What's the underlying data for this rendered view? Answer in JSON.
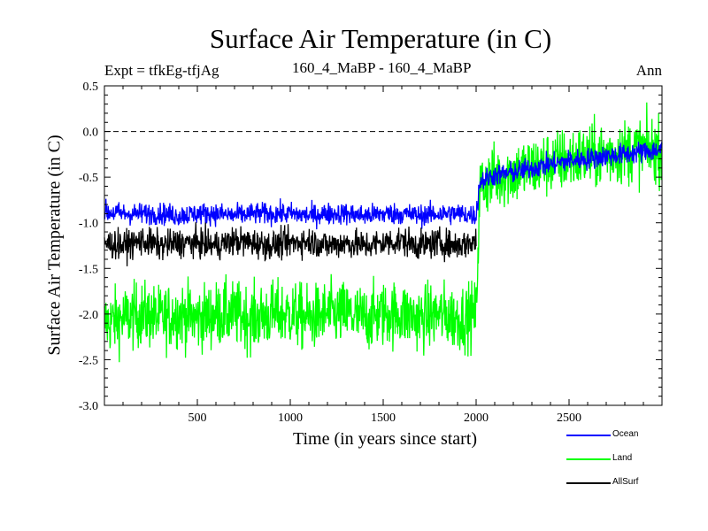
{
  "chart_data": {
    "type": "line",
    "title": "Surface Air Temperature (in C)",
    "subtitle_left": "Expt = tfkEg-tfjAg",
    "subtitle_center": "160_4_MaBP - 160_4_MaBP",
    "subtitle_right": "Ann",
    "xlabel": "Time (in years since start)",
    "ylabel": "Surface Air Temperature (in C)",
    "xlim": [
      0,
      3000
    ],
    "ylim": [
      -3.0,
      0.5
    ],
    "xticks": [
      500,
      1000,
      1500,
      2000,
      2500
    ],
    "yticks": [
      -3.0,
      -2.5,
      -2.0,
      -1.5,
      -1.0,
      -0.5,
      0.0,
      0.5
    ],
    "ytick_labels": [
      "-3.0",
      "-2.5",
      "-2.0",
      "-1.5",
      "-1.0",
      "-0.5",
      "0.0",
      "0.5"
    ],
    "reference_line": {
      "y": 0.0,
      "style": "dashed"
    },
    "grid": false,
    "legend_position": "below-right",
    "series": [
      {
        "name": "Land",
        "color": "#00ff00",
        "x": [
          0,
          100,
          200,
          300,
          400,
          500,
          600,
          700,
          800,
          900,
          1000,
          1100,
          1200,
          1300,
          1400,
          1500,
          1600,
          1700,
          1800,
          1900,
          2000,
          2020,
          2100,
          2200,
          2300,
          2400,
          2500,
          2600,
          2700,
          2800,
          2900,
          3000
        ],
        "y": [
          -2.1,
          -2.05,
          -2.0,
          -2.05,
          -2.0,
          -2.05,
          -2.0,
          -2.0,
          -2.05,
          -2.0,
          -2.0,
          -2.05,
          -2.0,
          -2.0,
          -2.05,
          -2.0,
          -2.0,
          -2.05,
          -2.0,
          -2.05,
          -2.0,
          -0.6,
          -0.5,
          -0.45,
          -0.4,
          -0.35,
          -0.3,
          -0.28,
          -0.25,
          -0.22,
          -0.2,
          -0.2
        ],
        "noise": 0.18
      },
      {
        "name": "Ocean",
        "color": "#0000ff",
        "x": [
          0,
          100,
          200,
          300,
          400,
          500,
          600,
          700,
          800,
          900,
          1000,
          1100,
          1200,
          1300,
          1400,
          1500,
          1600,
          1700,
          1800,
          1900,
          2000,
          2020,
          2100,
          2200,
          2300,
          2400,
          2500,
          2600,
          2700,
          2800,
          2900,
          3000
        ],
        "y": [
          -0.88,
          -0.9,
          -0.9,
          -0.9,
          -0.92,
          -0.9,
          -0.9,
          -0.92,
          -0.9,
          -0.9,
          -0.9,
          -0.92,
          -0.9,
          -0.9,
          -0.92,
          -0.9,
          -0.9,
          -0.92,
          -0.9,
          -0.9,
          -0.92,
          -0.55,
          -0.48,
          -0.45,
          -0.4,
          -0.36,
          -0.32,
          -0.3,
          -0.27,
          -0.25,
          -0.22,
          -0.2
        ],
        "noise": 0.06
      },
      {
        "name": "AllSurf",
        "color": "#000000",
        "x": [
          0,
          100,
          200,
          300,
          400,
          500,
          600,
          700,
          800,
          900,
          1000,
          1100,
          1200,
          1300,
          1400,
          1500,
          1600,
          1700,
          1800,
          1900,
          2000
        ],
        "y": [
          -1.22,
          -1.25,
          -1.2,
          -1.25,
          -1.22,
          -1.22,
          -1.25,
          -1.2,
          -1.22,
          -1.25,
          -1.22,
          -1.2,
          -1.25,
          -1.22,
          -1.25,
          -1.22,
          -1.2,
          -1.25,
          -1.22,
          -1.25,
          -1.2
        ],
        "noise": 0.08
      }
    ]
  },
  "legend": [
    {
      "name": "Ocean",
      "color": "#0000ff"
    },
    {
      "name": "Land",
      "color": "#00ff00"
    },
    {
      "name": "AllSurf",
      "color": "#000000"
    }
  ]
}
